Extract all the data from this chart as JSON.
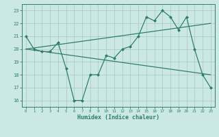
{
  "line1_x": [
    0,
    1,
    2,
    3,
    4,
    5,
    6,
    7,
    8,
    9,
    10,
    11,
    12,
    13,
    14,
    15,
    16,
    17,
    18,
    19,
    20,
    21,
    22,
    23
  ],
  "line1_y": [
    21.0,
    20.0,
    19.8,
    19.8,
    20.5,
    18.5,
    16.0,
    16.0,
    18.0,
    18.0,
    19.5,
    19.3,
    20.0,
    20.2,
    21.0,
    22.5,
    22.2,
    23.0,
    22.5,
    21.5,
    22.5,
    20.0,
    18.0,
    17.0
  ],
  "line2_x": [
    0,
    23
  ],
  "line2_y": [
    20.0,
    22.0
  ],
  "line3_x": [
    0,
    23
  ],
  "line3_y": [
    20.0,
    18.0
  ],
  "color": "#2e7d6e",
  "bg_color": "#cce8e4",
  "grid_color": "#aaccca",
  "xlabel": "Humidex (Indice chaleur)",
  "ylim": [
    15.5,
    23.5
  ],
  "xlim": [
    -0.5,
    23.5
  ],
  "yticks": [
    16,
    17,
    18,
    19,
    20,
    21,
    22,
    23
  ],
  "xticks": [
    0,
    1,
    2,
    3,
    4,
    5,
    6,
    7,
    8,
    9,
    10,
    11,
    12,
    13,
    14,
    15,
    16,
    17,
    18,
    19,
    20,
    21,
    22,
    23
  ]
}
